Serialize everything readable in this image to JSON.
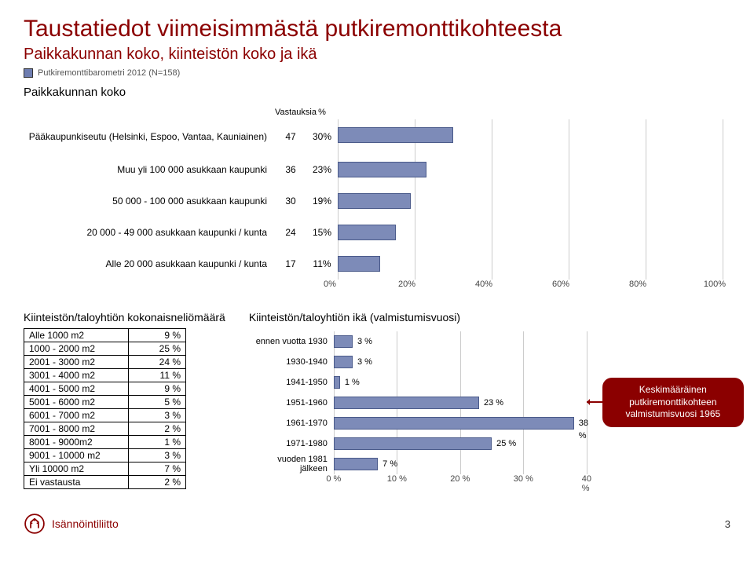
{
  "title": "Taustatiedot viimeisimmästä putkiremonttikohteesta",
  "subtitle": "Paikkakunnan koko, kiinteistön koko ja ikä",
  "legend_text": "Putkiremonttibarometri 2012 (N=158)",
  "section1_heading": "Paikkakunnan koko",
  "chart1": {
    "xmax": 100,
    "xticks": [
      0,
      20,
      40,
      60,
      80,
      100
    ],
    "col_headers": {
      "value": "Vastauksia",
      "pct": "%"
    },
    "bar_color": "#7d8bb8",
    "bar_border": "#4a5a8a",
    "rows": [
      {
        "label": "Pääkaupunkiseutu (Helsinki, Espoo, Vantaa, Kauniainen)",
        "value": "47",
        "pct": "30%",
        "p": 30,
        "multiline": true
      },
      {
        "label": "Muu yli 100 000 asukkaan kaupunki",
        "value": "36",
        "pct": "23%",
        "p": 23
      },
      {
        "label": "50 000 - 100 000 asukkaan kaupunki",
        "value": "30",
        "pct": "19%",
        "p": 19
      },
      {
        "label": "20 000 - 49 000 asukkaan kaupunki / kunta",
        "value": "24",
        "pct": "15%",
        "p": 15
      },
      {
        "label": "Alle 20 000 asukkaan kaupunki / kunta",
        "value": "17",
        "pct": "11%",
        "p": 11
      }
    ]
  },
  "area_table": {
    "title": "Kiinteistön/taloyhtiön kokonaisneliömäärä",
    "rows": [
      {
        "label": "Alle 1000 m2",
        "pct": "9 %"
      },
      {
        "label": "1000 - 2000 m2",
        "pct": "25 %"
      },
      {
        "label": "2001 - 3000 m2",
        "pct": "24 %"
      },
      {
        "label": "3001 - 4000 m2",
        "pct": "11 %"
      },
      {
        "label": "4001 - 5000 m2",
        "pct": "9 %"
      },
      {
        "label": "5001 - 6000 m2",
        "pct": "5 %"
      },
      {
        "label": "6001 - 7000 m2",
        "pct": "3 %"
      },
      {
        "label": "7001 - 8000 m2",
        "pct": "2 %"
      },
      {
        "label": "8001 - 9000m2",
        "pct": "1 %"
      },
      {
        "label": "9001 - 10000 m2",
        "pct": "3 %"
      },
      {
        "label": "Yli 10000 m2",
        "pct": "7 %"
      },
      {
        "label": "Ei vastausta",
        "pct": "2 %"
      }
    ]
  },
  "chart2": {
    "title": "Kiinteistön/taloyhtiön ikä (valmistumisvuosi)",
    "xmax": 40,
    "xticks": [
      0,
      10,
      20,
      30,
      40
    ],
    "bar_color": "#7d8bb8",
    "bar_border": "#4a5a8a",
    "rows": [
      {
        "label": "ennen vuotta 1930",
        "pct": "3 %",
        "p": 3
      },
      {
        "label": "1930-1940",
        "pct": "3 %",
        "p": 3
      },
      {
        "label": "1941-1950",
        "pct": "1 %",
        "p": 1
      },
      {
        "label": "1951-1960",
        "pct": "23 %",
        "p": 23
      },
      {
        "label": "1961-1970",
        "pct": "38 %",
        "p": 38
      },
      {
        "label": "1971-1980",
        "pct": "25 %",
        "p": 25
      },
      {
        "label": "vuoden 1981 jälkeen",
        "pct": "7 %",
        "p": 7
      }
    ]
  },
  "callout": "Keskimääräinen putkiremonttikohteen valmistumisvuosi 1965",
  "logo_text": "Isännöintiliitto",
  "page_number": "3"
}
